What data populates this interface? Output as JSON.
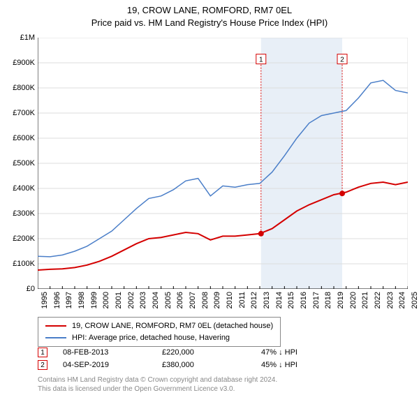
{
  "title_line1": "19, CROW LANE, ROMFORD, RM7 0EL",
  "title_line2": "Price paid vs. HM Land Registry's House Price Index (HPI)",
  "chart": {
    "type": "line",
    "background_color": "#ffffff",
    "grid_color": "#dddddd",
    "axis_color": "#000000",
    "label_fontsize": 11,
    "title_fontsize": 13,
    "ylim": [
      0,
      1000000
    ],
    "ytick_step": 100000,
    "ytick_labels": [
      "£0",
      "£100K",
      "£200K",
      "£300K",
      "£400K",
      "£500K",
      "£600K",
      "£700K",
      "£800K",
      "£900K",
      "£1M"
    ],
    "xlim": [
      1995,
      2025
    ],
    "xtick_step": 1,
    "xtick_labels": [
      "1995",
      "1996",
      "1997",
      "1998",
      "1999",
      "2000",
      "2001",
      "2002",
      "2003",
      "2004",
      "2005",
      "2006",
      "2007",
      "2008",
      "2009",
      "2010",
      "2011",
      "2012",
      "2013",
      "2014",
      "2015",
      "2016",
      "2017",
      "2018",
      "2019",
      "2020",
      "2021",
      "2022",
      "2023",
      "2024",
      "2025"
    ],
    "shaded_band": {
      "x_from": 2013.1,
      "x_to": 2019.68,
      "fill": "#e8eff7"
    },
    "series": [
      {
        "name": "price_paid",
        "label": "19, CROW LANE, ROMFORD, RM7 0EL (detached house)",
        "color": "#d40000",
        "line_width": 2,
        "points": [
          [
            1995,
            75000
          ],
          [
            1996,
            78000
          ],
          [
            1997,
            80000
          ],
          [
            1998,
            85000
          ],
          [
            1999,
            95000
          ],
          [
            2000,
            110000
          ],
          [
            2001,
            130000
          ],
          [
            2002,
            155000
          ],
          [
            2003,
            180000
          ],
          [
            2004,
            200000
          ],
          [
            2005,
            205000
          ],
          [
            2006,
            215000
          ],
          [
            2007,
            225000
          ],
          [
            2008,
            220000
          ],
          [
            2009,
            195000
          ],
          [
            2010,
            210000
          ],
          [
            2011,
            210000
          ],
          [
            2012,
            215000
          ],
          [
            2013,
            220000
          ],
          [
            2014,
            240000
          ],
          [
            2015,
            275000
          ],
          [
            2016,
            310000
          ],
          [
            2017,
            335000
          ],
          [
            2018,
            355000
          ],
          [
            2019,
            375000
          ],
          [
            2020,
            385000
          ],
          [
            2021,
            405000
          ],
          [
            2022,
            420000
          ],
          [
            2023,
            425000
          ],
          [
            2024,
            415000
          ],
          [
            2025,
            425000
          ]
        ]
      },
      {
        "name": "hpi",
        "label": "HPI: Average price, detached house, Havering",
        "color": "#4a7ec8",
        "line_width": 1.5,
        "points": [
          [
            1995,
            130000
          ],
          [
            1996,
            128000
          ],
          [
            1997,
            135000
          ],
          [
            1998,
            150000
          ],
          [
            1999,
            170000
          ],
          [
            2000,
            200000
          ],
          [
            2001,
            230000
          ],
          [
            2002,
            275000
          ],
          [
            2003,
            320000
          ],
          [
            2004,
            360000
          ],
          [
            2005,
            370000
          ],
          [
            2006,
            395000
          ],
          [
            2007,
            430000
          ],
          [
            2008,
            440000
          ],
          [
            2009,
            370000
          ],
          [
            2010,
            410000
          ],
          [
            2011,
            405000
          ],
          [
            2012,
            415000
          ],
          [
            2013,
            420000
          ],
          [
            2014,
            465000
          ],
          [
            2015,
            530000
          ],
          [
            2016,
            600000
          ],
          [
            2017,
            660000
          ],
          [
            2018,
            690000
          ],
          [
            2019,
            700000
          ],
          [
            2020,
            710000
          ],
          [
            2021,
            760000
          ],
          [
            2022,
            820000
          ],
          [
            2023,
            830000
          ],
          [
            2024,
            790000
          ],
          [
            2025,
            780000
          ]
        ]
      }
    ],
    "sale_markers": [
      {
        "n": "1",
        "x": 2013.1,
        "y": 220000,
        "dot_color": "#d40000",
        "line_color": "#d40000",
        "label_top_y": 915000
      },
      {
        "n": "2",
        "x": 2019.68,
        "y": 380000,
        "dot_color": "#d40000",
        "line_color": "#d40000",
        "label_top_y": 915000
      }
    ]
  },
  "legend": {
    "rows": [
      {
        "color": "#d40000",
        "label": "19, CROW LANE, ROMFORD, RM7 0EL (detached house)"
      },
      {
        "color": "#4a7ec8",
        "label": "HPI: Average price, detached house, Havering"
      }
    ]
  },
  "sales_table": {
    "rows": [
      {
        "n": "1",
        "border": "#d40000",
        "date": "08-FEB-2013",
        "price": "£220,000",
        "pct": "47% ↓ HPI"
      },
      {
        "n": "2",
        "border": "#d40000",
        "date": "04-SEP-2019",
        "price": "£380,000",
        "pct": "45% ↓ HPI"
      }
    ]
  },
  "attribution": {
    "line1": "Contains HM Land Registry data © Crown copyright and database right 2024.",
    "line2": "This data is licensed under the Open Government Licence v3.0."
  }
}
